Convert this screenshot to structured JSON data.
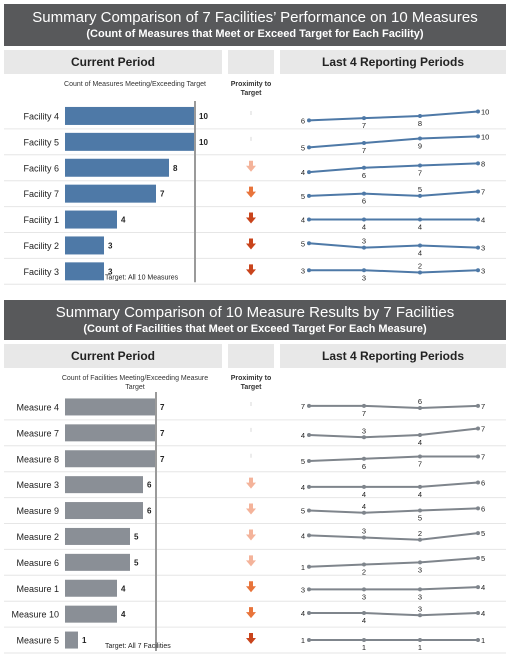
{
  "sections": [
    {
      "title": "Summary Comparison of 7 Facilities’ Performance on 10 Measures",
      "subtitle": "(Count of Measures that Meet or Exceed Target for Each Facility)",
      "current_header": "Current Period",
      "count_label": "Count of Measures Meeting/Exceeding Target",
      "proximity_label": "Proximity to Target",
      "last4_header": "Last 4 Reporting Periods",
      "target_label": "Target: All 10 Measures",
      "bar_color": "#4e79a7",
      "line_color": "#4e79a7"
    },
    {
      "title": "Summary Comparison of 10 Measure Results by 7 Facilities",
      "subtitle": "(Count of Facilities that Meet or Exceed Target For Each Measure)",
      "current_header": "Current Period",
      "count_label": "Count of Facilities Meeting/Exceeding Measure Target",
      "proximity_label": "Proximity to Target",
      "last4_header": "Last 4 Reporting Periods",
      "target_label": "Target: All 7 Facilities",
      "bar_color": "#8a8f96",
      "line_color": "#7f858c"
    }
  ],
  "chart_data": [
    {
      "type": "bar",
      "target": 10,
      "categories": [
        "Facility 4",
        "Facility 5",
        "Facility 6",
        "Facility 7",
        "Facility 1",
        "Facility 2",
        "Facility 3"
      ],
      "values": [
        10,
        10,
        8,
        7,
        4,
        3,
        3
      ],
      "proximity": [
        null,
        null,
        "light",
        "medium",
        "dark",
        "dark",
        "dark"
      ],
      "trend": [
        [
          6,
          7,
          8,
          10
        ],
        [
          5,
          7,
          9,
          10
        ],
        [
          4,
          6,
          7,
          8
        ],
        [
          5,
          6,
          5,
          7
        ],
        [
          4,
          4,
          4,
          4
        ],
        [
          5,
          3,
          4,
          3
        ],
        [
          3,
          3,
          2,
          3
        ]
      ]
    },
    {
      "type": "bar",
      "target": 7,
      "categories": [
        "Measure 4",
        "Measure 7",
        "Measure 8",
        "Measure 3",
        "Measure 9",
        "Measure 2",
        "Measure 6",
        "Measure 1",
        "Measure 10",
        "Measure 5"
      ],
      "values": [
        7,
        7,
        7,
        6,
        6,
        5,
        5,
        4,
        4,
        1
      ],
      "proximity": [
        null,
        null,
        null,
        "light",
        "light",
        "light",
        "light",
        "medium",
        "medium",
        "dark"
      ],
      "trend": [
        [
          7,
          7,
          6,
          7
        ],
        [
          4,
          3,
          4,
          7
        ],
        [
          5,
          6,
          7,
          7
        ],
        [
          4,
          4,
          4,
          6
        ],
        [
          5,
          4,
          5,
          6
        ],
        [
          4,
          3,
          2,
          5
        ],
        [
          1,
          2,
          3,
          5
        ],
        [
          3,
          3,
          3,
          4
        ],
        [
          4,
          4,
          3,
          4
        ],
        [
          1,
          1,
          1,
          1
        ]
      ]
    }
  ],
  "arrow_colors": {
    "light": "#f4b39a",
    "medium": "#e8743b",
    "dark": "#c9441c"
  }
}
